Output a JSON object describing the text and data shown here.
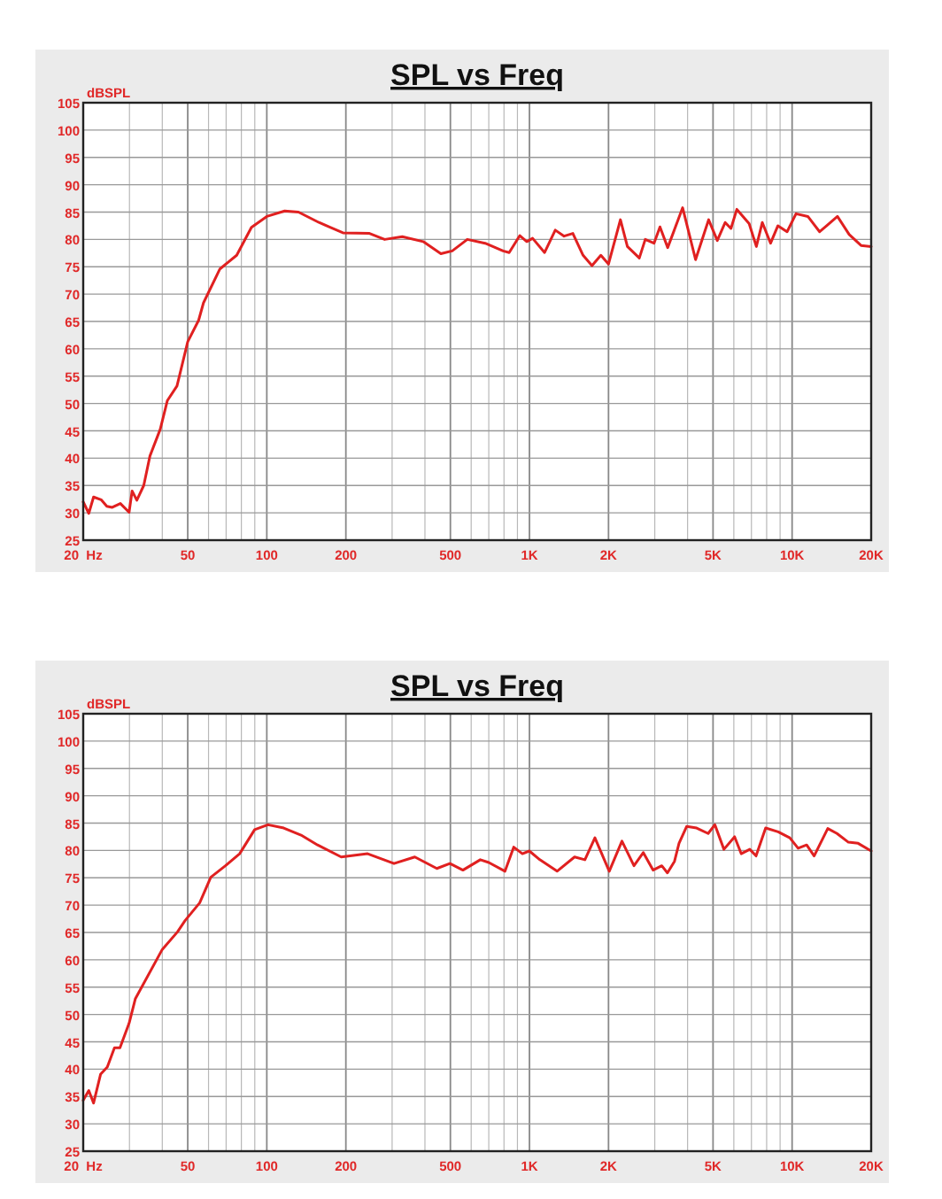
{
  "chart_data": [
    {
      "type": "line",
      "title": "SPL vs Freq",
      "ylabel": "dBSPL",
      "log": "x",
      "grid": true,
      "xlim": [
        20,
        20000
      ],
      "ylim": [
        25,
        105
      ],
      "xticks": [
        {
          "value": 20,
          "label": "20  Hz"
        },
        {
          "value": 30,
          "label": null
        },
        {
          "value": 40,
          "label": null
        },
        50,
        {
          "value": 60,
          "label": null
        },
        {
          "value": 70,
          "label": null
        },
        {
          "value": 80,
          "label": null
        },
        {
          "value": 90,
          "label": null
        },
        100,
        200,
        {
          "value": 300,
          "label": null
        },
        {
          "value": 400,
          "label": null
        },
        500,
        {
          "value": 600,
          "label": null
        },
        {
          "value": 700,
          "label": null
        },
        {
          "value": 800,
          "label": null
        },
        {
          "value": 900,
          "label": null
        },
        {
          "value": 1000,
          "label": "1K"
        },
        {
          "value": 2000,
          "label": "2K"
        },
        {
          "value": 3000,
          "label": null
        },
        {
          "value": 4000,
          "label": null
        },
        {
          "value": 5000,
          "label": "5K"
        },
        {
          "value": 6000,
          "label": null
        },
        {
          "value": 7000,
          "label": null
        },
        {
          "value": 8000,
          "label": null
        },
        {
          "value": 9000,
          "label": null
        },
        {
          "value": 10000,
          "label": "10K"
        },
        {
          "value": 20000,
          "label": "20K"
        }
      ],
      "yticks": [
        25,
        30,
        35,
        40,
        45,
        50,
        55,
        60,
        65,
        70,
        75,
        80,
        85,
        90,
        95,
        100,
        105
      ],
      "series": [
        {
          "color": "#e02020",
          "x": [
            20,
            21,
            21.9,
            23.4,
            24.6,
            25.8,
            27.7,
            29.9,
            30.7,
            32,
            34,
            35.9,
            39.3,
            41.8,
            45.5,
            50,
            55,
            57.4,
            66.3,
            76.8,
            87.4,
            100,
            117,
            132,
            158,
            195,
            246,
            281,
            328,
            394,
            460,
            508,
            580,
            678,
            794,
            837,
            919,
            977,
            1028,
            1142,
            1254,
            1355,
            1463,
            1600,
            1730,
            1870,
            2000,
            2220,
            2360,
            2620,
            2760,
            2980,
            3140,
            3360,
            3830,
            4290,
            4810,
            5190,
            5560,
            5850,
            6160,
            6860,
            7310,
            7700,
            8280,
            8830,
            9570,
            10350,
            11480,
            12730,
            14880,
            16500,
            18300,
            20000
          ],
          "values": [
            32,
            29.9,
            32.9,
            32.4,
            31.2,
            31,
            31.7,
            30.1,
            34,
            32.3,
            35,
            40.4,
            45.3,
            50.5,
            53.2,
            61.3,
            65.2,
            68.4,
            74.6,
            77.1,
            82.2,
            84.2,
            85.2,
            85,
            83.1,
            81.2,
            81.1,
            80,
            80.5,
            79.6,
            77.4,
            77.9,
            80,
            79.3,
            77.9,
            77.6,
            80.7,
            79.6,
            80.2,
            77.6,
            81.7,
            80.6,
            81.1,
            77.1,
            75.2,
            77.1,
            75.5,
            83.6,
            78.7,
            76.6,
            80,
            79.3,
            82.3,
            78.5,
            85.8,
            76.3,
            83.6,
            79.8,
            83.1,
            82,
            85.5,
            82.9,
            78.7,
            83.1,
            79.3,
            82.5,
            81.4,
            84.7,
            84.2,
            81.4,
            84.2,
            80.9,
            78.9,
            78.7
          ]
        }
      ]
    },
    {
      "type": "line",
      "title": "SPL vs Freq",
      "ylabel": "dBSPL",
      "log": "x",
      "grid": true,
      "xlim": [
        20,
        20000
      ],
      "ylim": [
        25,
        105
      ],
      "xticks": [
        {
          "value": 20,
          "label": "20  Hz"
        },
        {
          "value": 30,
          "label": null
        },
        {
          "value": 40,
          "label": null
        },
        50,
        {
          "value": 60,
          "label": null
        },
        {
          "value": 70,
          "label": null
        },
        {
          "value": 80,
          "label": null
        },
        {
          "value": 90,
          "label": null
        },
        100,
        200,
        {
          "value": 300,
          "label": null
        },
        {
          "value": 400,
          "label": null
        },
        500,
        {
          "value": 600,
          "label": null
        },
        {
          "value": 700,
          "label": null
        },
        {
          "value": 800,
          "label": null
        },
        {
          "value": 900,
          "label": null
        },
        {
          "value": 1000,
          "label": "1K"
        },
        {
          "value": 2000,
          "label": "2K"
        },
        {
          "value": 3000,
          "label": null
        },
        {
          "value": 4000,
          "label": null
        },
        {
          "value": 5000,
          "label": "5K"
        },
        {
          "value": 6000,
          "label": null
        },
        {
          "value": 7000,
          "label": null
        },
        {
          "value": 8000,
          "label": null
        },
        {
          "value": 9000,
          "label": null
        },
        {
          "value": 10000,
          "label": "10K"
        },
        {
          "value": 20000,
          "label": "20K"
        }
      ],
      "yticks": [
        25,
        30,
        35,
        40,
        45,
        50,
        55,
        60,
        65,
        70,
        75,
        80,
        85,
        90,
        95,
        100,
        105
      ],
      "series": [
        {
          "color": "#e02020",
          "x": [
            20,
            21,
            21.9,
            23.3,
            24.7,
            26.3,
            27.6,
            29.9,
            31.6,
            40,
            45.7,
            48.9,
            55.5,
            61.2,
            69.6,
            78.8,
            89.9,
            101,
            116,
            135,
            156,
            192,
            242,
            305,
            366,
            444,
            498,
            558,
            650,
            700,
            807,
            871,
            940,
            999,
            1095,
            1274,
            1485,
            1626,
            1775,
            2013,
            2250,
            2500,
            2712,
            2955,
            3190,
            3352,
            3566,
            3710,
            3970,
            4330,
            4790,
            5080,
            5500,
            6040,
            6400,
            6900,
            7290,
            7930,
            8850,
            9800,
            10540,
            11360,
            12130,
            13670,
            14820,
            16380,
            17840,
            20000
          ],
          "values": [
            34.3,
            36.1,
            33.8,
            39.1,
            40.4,
            43.9,
            43.9,
            48.4,
            52.9,
            61.9,
            65.1,
            67.2,
            70.4,
            75.1,
            77.2,
            79.4,
            83.8,
            84.7,
            84.1,
            82.8,
            81,
            78.8,
            79.4,
            77.6,
            78.8,
            76.7,
            77.6,
            76.4,
            78.3,
            77.8,
            76.2,
            80.6,
            79.4,
            79.9,
            78.3,
            76.2,
            78.8,
            78.3,
            82.3,
            76.2,
            81.7,
            77.2,
            79.6,
            76.4,
            77.2,
            75.9,
            78,
            81.3,
            84.4,
            84.1,
            83.1,
            84.7,
            80.2,
            82.5,
            79.4,
            80.2,
            79,
            84.1,
            83.4,
            82.3,
            80.4,
            81,
            79,
            84,
            83.1,
            81.5,
            81.3,
            79.9
          ]
        }
      ]
    }
  ]
}
